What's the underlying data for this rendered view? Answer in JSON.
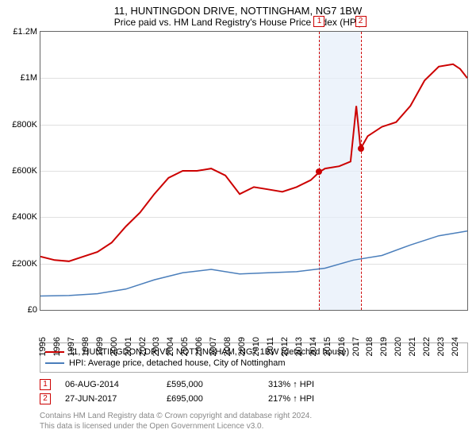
{
  "title": "11, HUNTINGDON DRIVE, NOTTINGHAM, NG7 1BW",
  "subtitle": "Price paid vs. HM Land Registry's House Price Index (HPI)",
  "chart": {
    "type": "line",
    "x_range": [
      1995,
      2025
    ],
    "x_ticks": [
      1995,
      1996,
      1997,
      1998,
      1999,
      2000,
      2001,
      2002,
      2003,
      2004,
      2005,
      2006,
      2007,
      2008,
      2009,
      2010,
      2011,
      2012,
      2013,
      2014,
      2015,
      2016,
      2017,
      2018,
      2019,
      2020,
      2021,
      2022,
      2023,
      2024
    ],
    "y_range": [
      0,
      1200000
    ],
    "y_ticks": [
      {
        "v": 0,
        "label": "£0"
      },
      {
        "v": 200000,
        "label": "£200K"
      },
      {
        "v": 400000,
        "label": "£400K"
      },
      {
        "v": 600000,
        "label": "£600K"
      },
      {
        "v": 800000,
        "label": "£800K"
      },
      {
        "v": 1000000,
        "label": "£1M"
      },
      {
        "v": 1200000,
        "label": "£1.2M"
      }
    ],
    "background_color": "#ffffff",
    "grid_color": "#e0e0e0",
    "axis_color": "#666666",
    "shaded": {
      "from": 2014.6,
      "to": 2017.5,
      "color": "#e6eefa"
    },
    "events": [
      {
        "x": 2014.6,
        "label": "1"
      },
      {
        "x": 2017.5,
        "label": "2"
      }
    ],
    "series": [
      {
        "id": "price_paid",
        "label": "11, HUNTINGDON DRIVE, NOTTINGHAM, NG7 1BW (detached house)",
        "color": "#cc0000",
        "width": 2,
        "points": [
          [
            1995,
            230000
          ],
          [
            1996,
            215000
          ],
          [
            1997,
            210000
          ],
          [
            1998,
            230000
          ],
          [
            1999,
            250000
          ],
          [
            2000,
            290000
          ],
          [
            2001,
            360000
          ],
          [
            2002,
            420000
          ],
          [
            2003,
            500000
          ],
          [
            2004,
            570000
          ],
          [
            2005,
            600000
          ],
          [
            2006,
            600000
          ],
          [
            2007,
            610000
          ],
          [
            2008,
            580000
          ],
          [
            2009,
            500000
          ],
          [
            2010,
            530000
          ],
          [
            2011,
            520000
          ],
          [
            2012,
            510000
          ],
          [
            2013,
            530000
          ],
          [
            2014,
            560000
          ],
          [
            2014.6,
            595000
          ],
          [
            2015,
            610000
          ],
          [
            2016,
            620000
          ],
          [
            2016.8,
            640000
          ],
          [
            2017.2,
            880000
          ],
          [
            2017.5,
            695000
          ],
          [
            2018,
            750000
          ],
          [
            2019,
            790000
          ],
          [
            2020,
            810000
          ],
          [
            2021,
            880000
          ],
          [
            2022,
            990000
          ],
          [
            2023,
            1050000
          ],
          [
            2024,
            1060000
          ],
          [
            2024.5,
            1040000
          ],
          [
            2025,
            1000000
          ]
        ],
        "dots": [
          {
            "x": 2014.6,
            "y": 595000
          },
          {
            "x": 2017.5,
            "y": 695000
          }
        ]
      },
      {
        "id": "hpi",
        "label": "HPI: Average price, detached house, City of Nottingham",
        "color": "#4a7ebb",
        "width": 1.5,
        "points": [
          [
            1995,
            60000
          ],
          [
            1997,
            62000
          ],
          [
            1999,
            70000
          ],
          [
            2001,
            90000
          ],
          [
            2003,
            130000
          ],
          [
            2005,
            160000
          ],
          [
            2007,
            175000
          ],
          [
            2009,
            155000
          ],
          [
            2011,
            160000
          ],
          [
            2013,
            165000
          ],
          [
            2015,
            180000
          ],
          [
            2017,
            215000
          ],
          [
            2019,
            235000
          ],
          [
            2021,
            280000
          ],
          [
            2023,
            320000
          ],
          [
            2025,
            340000
          ]
        ]
      }
    ]
  },
  "legend": {
    "items": [
      {
        "color": "#cc0000",
        "label": "11, HUNTINGDON DRIVE, NOTTINGHAM, NG7 1BW (detached house)"
      },
      {
        "color": "#4a7ebb",
        "label": "HPI: Average price, detached house, City of Nottingham"
      }
    ]
  },
  "notes": [
    {
      "n": "1",
      "date": "06-AUG-2014",
      "price": "£595,000",
      "delta": "313% ↑ HPI"
    },
    {
      "n": "2",
      "date": "27-JUN-2017",
      "price": "£695,000",
      "delta": "217% ↑ HPI"
    }
  ],
  "footer": {
    "l1": "Contains HM Land Registry data © Crown copyright and database right 2024.",
    "l2": "This data is licensed under the Open Government Licence v3.0."
  }
}
